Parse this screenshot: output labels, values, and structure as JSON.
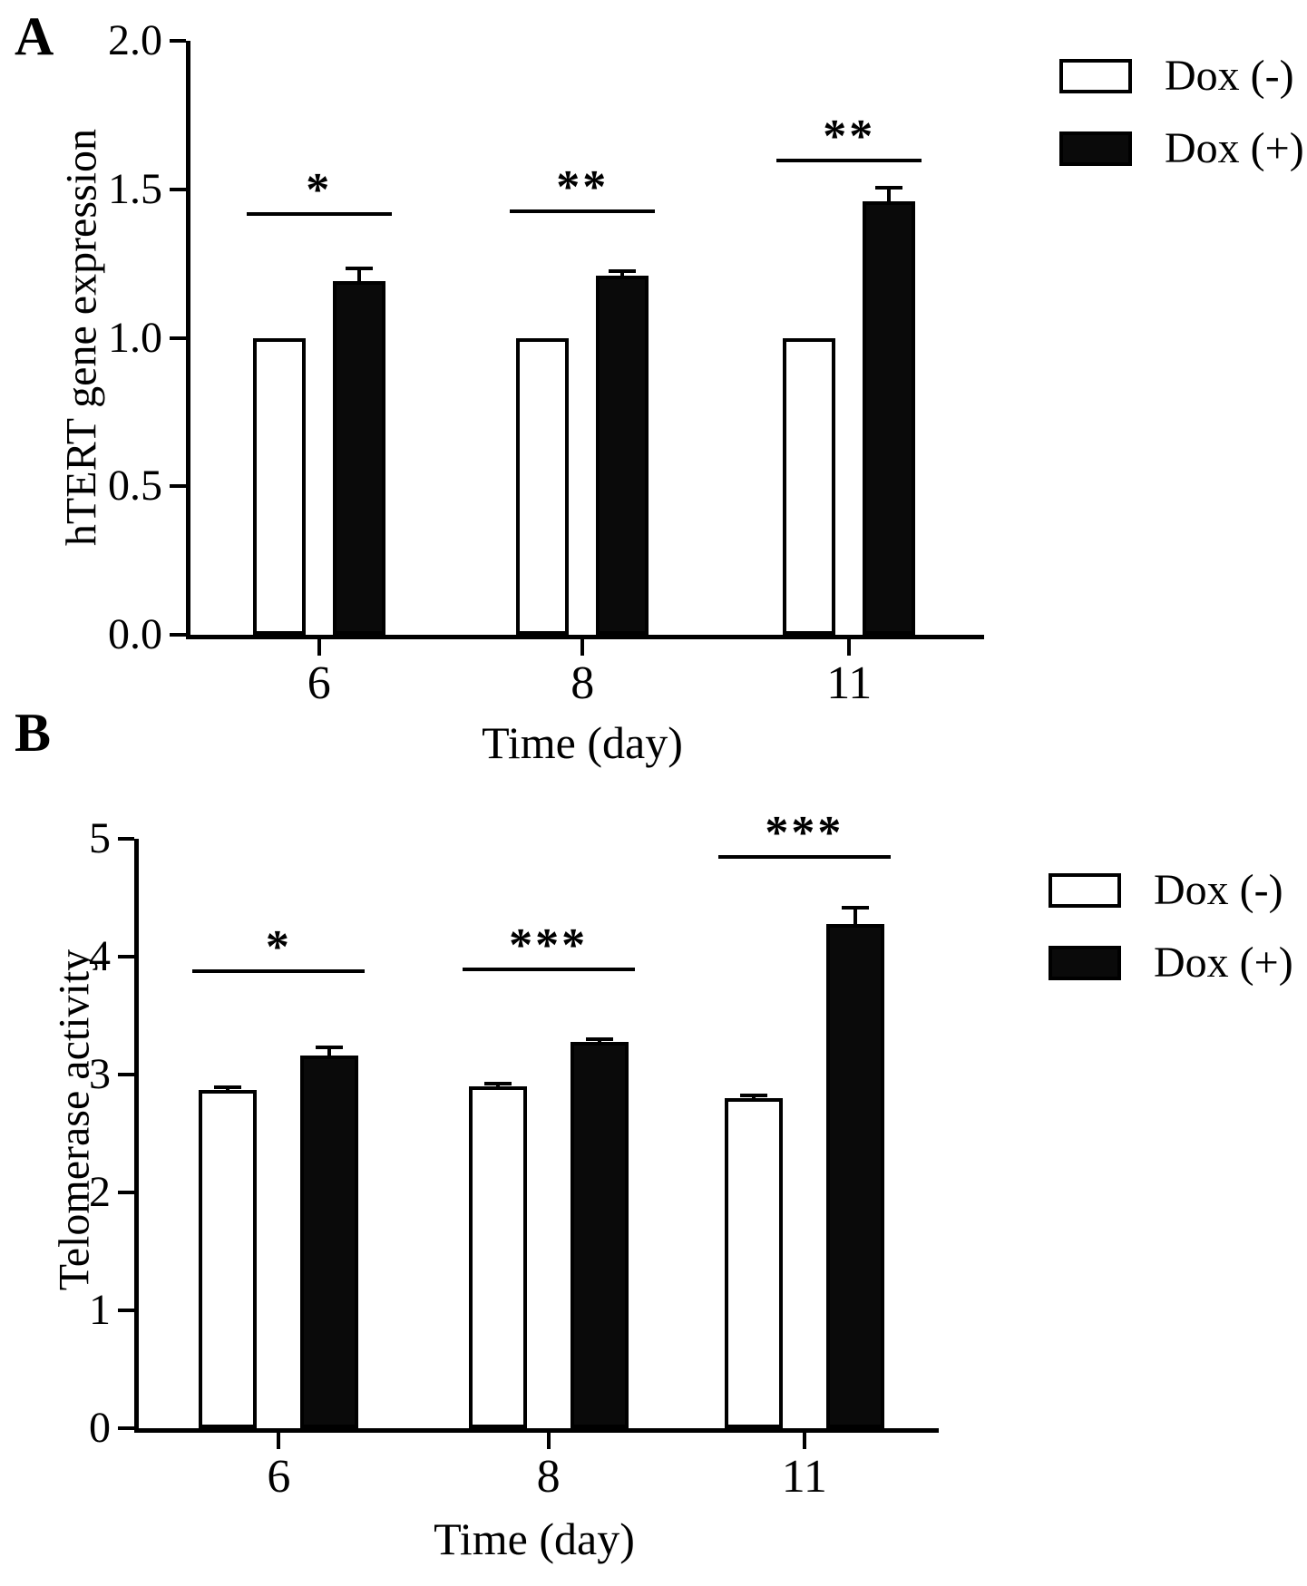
{
  "chart_data": [
    {
      "type": "bar",
      "panel_label": "A",
      "title": "",
      "xlabel": "Time (day)",
      "ylabel": "hTERT gene expression",
      "ylim": [
        0,
        2.0
      ],
      "yticks": [
        0.0,
        0.5,
        1.0,
        1.5,
        2.0
      ],
      "ytick_labels": [
        "0.0",
        "0.5",
        "1.0",
        "1.5",
        "2.0"
      ],
      "categories": [
        "6",
        "8",
        "11"
      ],
      "series": [
        {
          "name": "Dox (-)",
          "fill": "#ffffff",
          "values": [
            1.0,
            1.0,
            1.0
          ],
          "errors": [
            0,
            0,
            0
          ]
        },
        {
          "name": "Dox (+)",
          "fill": "#000000",
          "values": [
            1.19,
            1.21,
            1.46
          ],
          "errors": [
            0.05,
            0.02,
            0.05
          ]
        }
      ],
      "significance": [
        {
          "category": "6",
          "marker": "*",
          "line_y": 1.41
        },
        {
          "category": "8",
          "marker": "**",
          "line_y": 1.42
        },
        {
          "category": "11",
          "marker": "**",
          "line_y": 1.59
        }
      ],
      "legend_position": "top-right",
      "grid": false
    },
    {
      "type": "bar",
      "panel_label": "B",
      "title": "",
      "xlabel": "Time (day)",
      "ylabel": "Telomerase activity",
      "ylim": [
        0,
        5
      ],
      "yticks": [
        0,
        1,
        2,
        3,
        4,
        5
      ],
      "ytick_labels": [
        "0",
        "1",
        "2",
        "3",
        "4",
        "5"
      ],
      "categories": [
        "6",
        "8",
        "11"
      ],
      "series": [
        {
          "name": "Dox (-)",
          "fill": "#ffffff",
          "values": [
            2.87,
            2.9,
            2.8
          ],
          "errors": [
            0.03,
            0.02,
            0.02
          ]
        },
        {
          "name": "Dox (+)",
          "fill": "#000000",
          "values": [
            3.16,
            3.28,
            4.28
          ],
          "errors": [
            0.09,
            0.02,
            0.15
          ]
        }
      ],
      "significance": [
        {
          "category": "6",
          "marker": "*",
          "line_y": 3.86
        },
        {
          "category": "8",
          "marker": "***",
          "line_y": 3.88
        },
        {
          "category": "11",
          "marker": "***",
          "line_y": 4.83
        }
      ],
      "legend_position": "right",
      "grid": false
    }
  ]
}
